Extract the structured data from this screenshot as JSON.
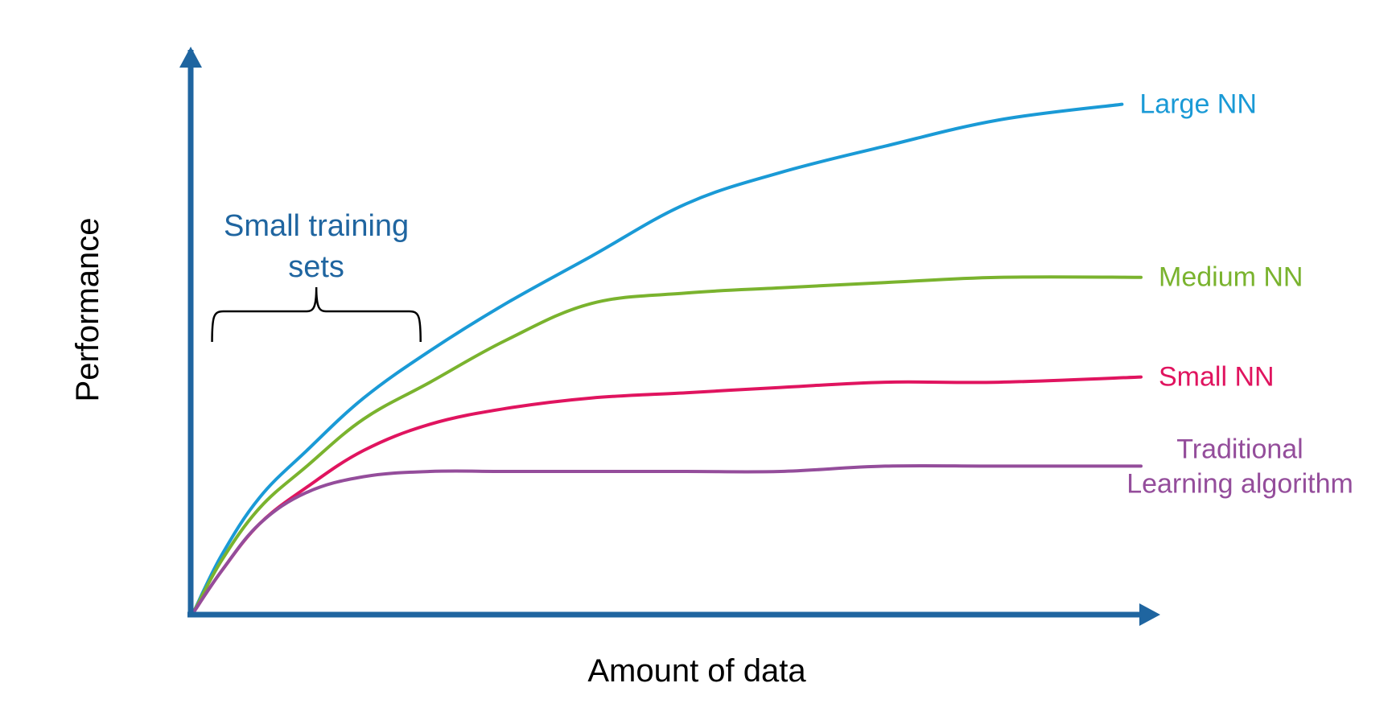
{
  "chart_data": {
    "type": "line",
    "title": "",
    "xlabel": "Amount of data",
    "ylabel": "Performance",
    "xlim": [
      0,
      100
    ],
    "ylim": [
      0,
      100
    ],
    "grid": false,
    "axis_color": "#1f65a0",
    "annotation": {
      "lines": [
        "Small training",
        "sets"
      ],
      "x_range": [
        2,
        24
      ],
      "color": "#1f65a0"
    },
    "series": [
      {
        "name": "Large NN",
        "label_lines": [
          "Large NN"
        ],
        "color": "#1a9ad6",
        "x": [
          0,
          3,
          7,
          12,
          18,
          25,
          33,
          42,
          52,
          62,
          73,
          85,
          98
        ],
        "y": [
          0,
          11,
          22,
          31,
          41,
          50,
          59,
          68,
          78,
          84,
          89,
          94,
          97
        ]
      },
      {
        "name": "Medium NN",
        "label_lines": [
          "Medium NN"
        ],
        "color": "#7ab32e",
        "x": [
          0,
          3,
          7,
          12,
          18,
          25,
          33,
          42,
          52,
          62,
          73,
          85,
          100
        ],
        "y": [
          0,
          10,
          20,
          28,
          37,
          44,
          52,
          59,
          61,
          62,
          63,
          64,
          64
        ]
      },
      {
        "name": "Small NN",
        "label_lines": [
          "Small NN"
        ],
        "color": "#e0145f",
        "x": [
          0,
          3,
          7,
          12,
          18,
          25,
          33,
          42,
          52,
          62,
          73,
          85,
          100
        ],
        "y": [
          0,
          8,
          17,
          24,
          31,
          36,
          39,
          41,
          42,
          43,
          44,
          44,
          45
        ]
      },
      {
        "name": "Traditional Learning algorithm",
        "label_lines": [
          "Traditional",
          "Learning algorithm"
        ],
        "color": "#944d9b",
        "x": [
          0,
          3,
          7,
          12,
          18,
          25,
          33,
          42,
          52,
          62,
          73,
          85,
          100
        ],
        "y": [
          0,
          8,
          17,
          23,
          26,
          27,
          27,
          27,
          27,
          27,
          28,
          28,
          28
        ]
      }
    ]
  }
}
